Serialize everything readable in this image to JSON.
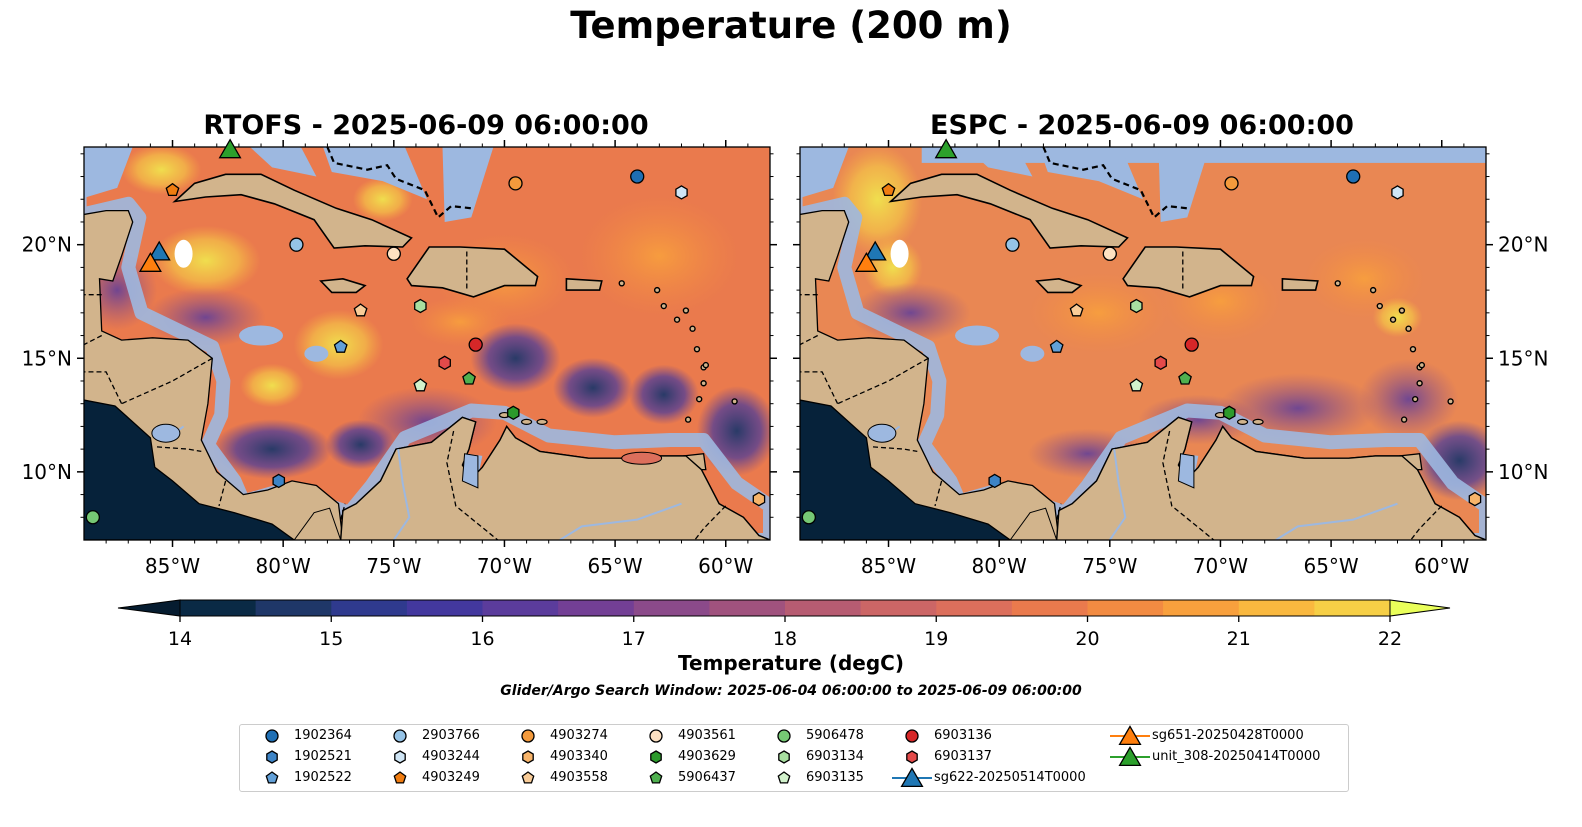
{
  "title": "Temperature (200 m)",
  "panels": [
    {
      "id": "rtofs",
      "title": "RTOFS - 2025-06-09 06:00:00"
    },
    {
      "id": "espc",
      "title": "ESPC - 2025-06-09 06:00:00"
    }
  ],
  "map": {
    "lon_range": [
      -89,
      -58
    ],
    "lat_range": [
      7,
      24.3
    ],
    "lon_ticks": [
      -85,
      -80,
      -75,
      -70,
      -65,
      -60
    ],
    "lon_tick_labels": [
      "85°W",
      "80°W",
      "75°W",
      "70°W",
      "65°W",
      "60°W"
    ],
    "lat_ticks": [
      10,
      15,
      20
    ],
    "lat_tick_labels": [
      "10°N",
      "15°N",
      "20°N"
    ],
    "colors": {
      "land": "#d2b48c",
      "shallow": "#9db8e0",
      "deep": "#06223a"
    }
  },
  "colorbar": {
    "label": "Temperature (degC)",
    "ticks": [
      "14",
      "15",
      "16",
      "17",
      "18",
      "19",
      "20",
      "21",
      "22"
    ],
    "min": 14,
    "max": 22,
    "colors": [
      "#0a2a45",
      "#1f3768",
      "#2f3a8e",
      "#43389e",
      "#5b3c9c",
      "#733f95",
      "#8b4a8a",
      "#a0527e",
      "#b75c72",
      "#cc6666",
      "#dc6f5c",
      "#ea7a4d",
      "#f28b42",
      "#f8a03d",
      "#f9b83f",
      "#f6cf46",
      "#f0e34e"
    ],
    "extend_low_color": "#061c30",
    "extend_high_color": "#eaff5a"
  },
  "search_window": "Glider/Argo Search Window: 2025-06-04 06:00:00 to 2025-06-09 06:00:00",
  "legend": {
    "items": [
      {
        "label": "1902364",
        "marker": "circle",
        "color": "#1f6fb4"
      },
      {
        "label": "1902521",
        "marker": "hexagon",
        "color": "#3d84c6"
      },
      {
        "label": "1902522",
        "marker": "pentagon",
        "color": "#62a0d8"
      },
      {
        "label": "2903766",
        "marker": "circle",
        "color": "#95c3e6"
      },
      {
        "label": "4903244",
        "marker": "hexagon",
        "color": "#cfe5f5"
      },
      {
        "label": "4903249",
        "marker": "pentagon",
        "color": "#f07c10"
      },
      {
        "label": "4903274",
        "marker": "circle",
        "color": "#f39a3c"
      },
      {
        "label": "4903340",
        "marker": "hexagon",
        "color": "#f7b46a"
      },
      {
        "label": "4903558",
        "marker": "pentagon",
        "color": "#f9cc98"
      },
      {
        "label": "4903561",
        "marker": "circle",
        "color": "#fde1c2"
      },
      {
        "label": "4903629",
        "marker": "hexagon",
        "color": "#2c9a2c"
      },
      {
        "label": "5906437",
        "marker": "pentagon",
        "color": "#4fb04f"
      },
      {
        "label": "5906478",
        "marker": "circle",
        "color": "#76c874"
      },
      {
        "label": "6903134",
        "marker": "hexagon",
        "color": "#a8dfa0"
      },
      {
        "label": "6903135",
        "marker": "pentagon",
        "color": "#d2f2cc"
      },
      {
        "label": "6903136",
        "marker": "circle",
        "color": "#d62728"
      },
      {
        "label": "6903137",
        "marker": "hexagon",
        "color": "#e34a4a"
      },
      {
        "label": "sg622-20250514T0000",
        "marker": "triangle",
        "color": "#1f77b4"
      },
      {
        "label": "sg651-20250428T0000",
        "marker": "triangle",
        "color": "#ff7f0e"
      },
      {
        "label": "unit_308-20250414T0000",
        "marker": "triangle",
        "color": "#2ca02c"
      }
    ]
  },
  "floats": [
    {
      "id": "1902364",
      "lon": -64.0,
      "lat": 23.0
    },
    {
      "id": "1902521",
      "lon": -80.2,
      "lat": 9.6
    },
    {
      "id": "1902522",
      "lon": -77.4,
      "lat": 15.5
    },
    {
      "id": "2903766",
      "lon": -79.4,
      "lat": 20.0
    },
    {
      "id": "4903244",
      "lon": -62.0,
      "lat": 22.3
    },
    {
      "id": "4903249",
      "lon": -85.0,
      "lat": 22.4
    },
    {
      "id": "4903274",
      "lon": -69.5,
      "lat": 22.7
    },
    {
      "id": "4903340",
      "lon": -58.5,
      "lat": 8.8
    },
    {
      "id": "4903558",
      "lon": -76.5,
      "lat": 17.1
    },
    {
      "id": "4903561",
      "lon": -75.0,
      "lat": 19.6
    },
    {
      "id": "4903629",
      "lon": -69.6,
      "lat": 12.6
    },
    {
      "id": "5906437",
      "lon": -71.6,
      "lat": 14.1
    },
    {
      "id": "5906478",
      "lon": -88.6,
      "lat": 8.0
    },
    {
      "id": "6903134",
      "lon": -73.8,
      "lat": 17.3
    },
    {
      "id": "6903135",
      "lon": -73.8,
      "lat": 13.8
    },
    {
      "id": "6903136",
      "lon": -71.3,
      "lat": 15.6
    },
    {
      "id": "6903137",
      "lon": -72.7,
      "lat": 14.8
    }
  ],
  "gliders": [
    {
      "id": "sg622-20250514T0000",
      "lon": -85.6,
      "lat": 19.7
    },
    {
      "id": "sg651-20250428T0000",
      "lon": -86.0,
      "lat": 19.2
    },
    {
      "id": "unit_308-20250414T0000",
      "lon": -82.4,
      "lat": 24.2
    }
  ]
}
